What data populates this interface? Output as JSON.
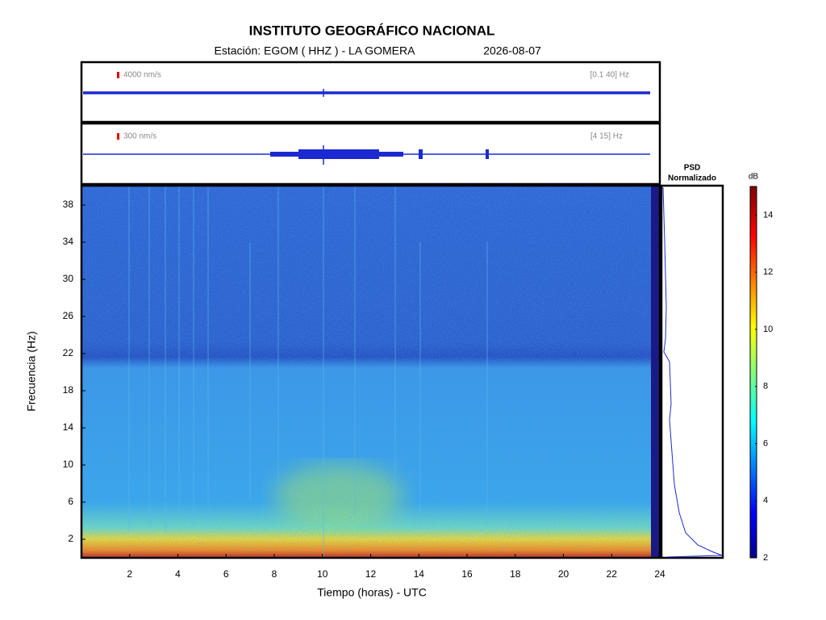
{
  "chart_data": {
    "type": "spectrogram",
    "title": "INSTITUTO GEOGRÁFICO NACIONAL",
    "station": "Estación:  EGOM ( HHZ ) - LA GOMERA",
    "date": "2026-08-07",
    "traces": [
      {
        "scale": "4000 nm/s",
        "band": "[0.1 40] Hz"
      },
      {
        "scale": "300 nm/s",
        "band": "[4 15] Hz"
      }
    ],
    "psd_title": [
      "PSD",
      "Normalizado"
    ],
    "xlabel": "Tiempo (horas) - UTC",
    "ylabel": "Frecuencia  (Hz)",
    "xlim": [
      0,
      24
    ],
    "xticks": [
      2,
      4,
      6,
      8,
      10,
      12,
      14,
      16,
      18,
      20,
      22,
      24
    ],
    "ylim": [
      0,
      40
    ],
    "yticks": [
      2,
      6,
      10,
      14,
      18,
      22,
      26,
      30,
      34,
      38
    ],
    "colorbar": {
      "label": "dB",
      "lim": [
        2,
        15
      ],
      "ticks": [
        2,
        4,
        6,
        8,
        10,
        12,
        14
      ]
    }
  }
}
